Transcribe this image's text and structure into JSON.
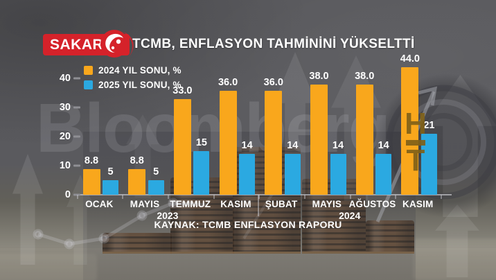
{
  "header": {
    "brand": "SAKARYA",
    "brand_color": "#D5222A",
    "title": "TCMB, ENFLASYON TAHMİNİNİ YÜKSELTTİ"
  },
  "watermarks": {
    "brand_text": "Bloomberg",
    "ht_top": "H",
    "ht_bottom": "T"
  },
  "source_note": "KAYNAK: TCMB ENFLASYON RAPORU",
  "chart_data": {
    "type": "bar",
    "categories": [
      "OCAK",
      "MAYIS",
      "TEMMUZ",
      "KASIM",
      "ŞUBAT",
      "MAYIS",
      "AĞUSTOS",
      "KASIM"
    ],
    "year_groups": [
      {
        "label": "2023",
        "from": 0,
        "to": 3
      },
      {
        "label": "2024",
        "from": 4,
        "to": 7
      }
    ],
    "series": [
      {
        "name": "2024 YIL SONU, %",
        "color": "#F9A71C",
        "values": [
          8.8,
          8.8,
          33.0,
          36.0,
          36.0,
          38.0,
          38.0,
          44.0
        ],
        "labels": [
          "8.8",
          "8.8",
          "33.0",
          "36.0",
          "36.0",
          "38.0",
          "38.0",
          "44.0"
        ]
      },
      {
        "name": "2025 YIL SONU, %",
        "color": "#2BA9E1",
        "values": [
          5,
          5,
          15,
          14,
          14,
          14,
          14,
          21
        ],
        "labels": [
          "5",
          "5",
          "15",
          "14",
          "14",
          "14",
          "14",
          "21"
        ]
      }
    ],
    "yticks": [
      0,
      10,
      20,
      30,
      40
    ],
    "ylim": [
      0,
      47
    ],
    "grid": false,
    "legend_position": "top-left"
  }
}
